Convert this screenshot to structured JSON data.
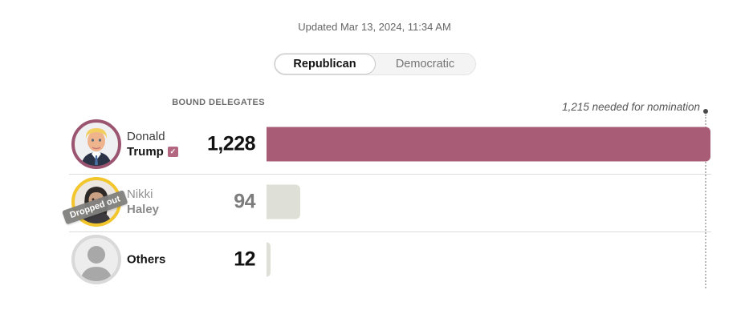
{
  "updated": "Updated Mar 13, 2024, 11:34 AM",
  "toggle": {
    "options": [
      {
        "label": "Republican",
        "active": true
      },
      {
        "label": "Democratic",
        "active": false
      }
    ]
  },
  "column_header": "BOUND DELEGATES",
  "threshold": {
    "label": "1,215 needed for nomination",
    "value": 1215
  },
  "icons": {
    "winner_check": "✓"
  },
  "colors": {
    "trump_bar": "#a85c75",
    "trump_ring": "#9c5570",
    "gray_bar": "#dedfd6",
    "haley_ring": "#f2c62c",
    "others_ring": "#d9d9d9",
    "check_badge": "#b26680",
    "divider": "#dcdcdc",
    "needed_line": "#b9b9b9"
  },
  "candidates": [
    {
      "first": "Donald",
      "last": "Trump",
      "value": 1228,
      "value_label": "1,228",
      "winner_check": true,
      "bar_color": "#a85c75",
      "ring_color": "#9c5570",
      "status": ""
    },
    {
      "first": "Nikki",
      "last": "Haley",
      "value": 94,
      "value_label": "94",
      "winner_check": false,
      "bar_color": "#dedfd6",
      "ring_color": "#f2c62c",
      "status": "Dropped out"
    },
    {
      "first": "",
      "last": "Others",
      "value": 12,
      "value_label": "12",
      "winner_check": false,
      "bar_color": "#dedfd6",
      "ring_color": "#d9d9d9",
      "status": ""
    }
  ],
  "chart_data": {
    "type": "bar",
    "orientation": "horizontal",
    "title": "Bound delegates",
    "categories": [
      "Donald Trump",
      "Nikki Haley",
      "Others"
    ],
    "values": [
      1228,
      94,
      12
    ],
    "value_labels": [
      "1,228",
      "94",
      "12"
    ],
    "threshold": {
      "value": 1215,
      "label": "1,215 needed for nomination"
    },
    "xlim": [
      0,
      1340
    ],
    "annotations": [
      "Updated Mar 13, 2024, 11:34 AM",
      "Dropped out"
    ],
    "legend": false,
    "grid": false
  }
}
